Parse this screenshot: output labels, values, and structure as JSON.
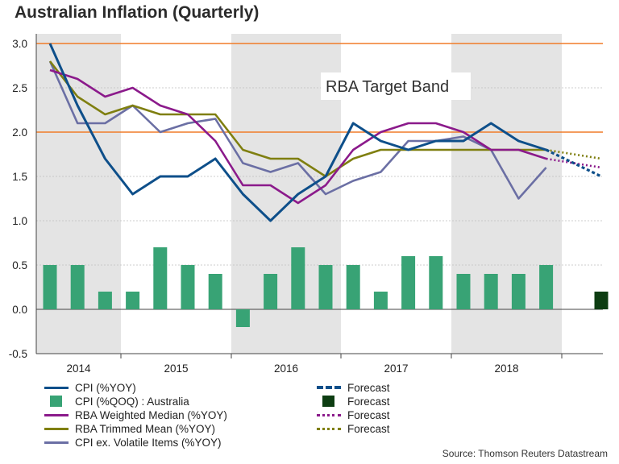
{
  "title": "Australian Inflation (Quarterly)",
  "source": "Source: Thomson Reuters Datastream",
  "colors": {
    "cpi": "#0e4f8a",
    "cpi_qoq": "#38a375",
    "weighted_median": "#8b1a8b",
    "trimmed_mean": "#7f7f10",
    "cpi_ex_volatile": "#6b6fa4",
    "forecast_bar": "#0d3d12",
    "target_band": "#f07c28",
    "shade": "#e4e4e4"
  },
  "chart_data": {
    "type": "line",
    "title": "Australian Inflation (Quarterly)",
    "ylim": [
      -0.5,
      3.0
    ],
    "yticks": [
      "3.0",
      "2.5",
      "2.0",
      "1.5",
      "1.0",
      "0.5",
      "0.0",
      "-0.5"
    ],
    "ytick_values": [
      3.0,
      2.5,
      2.0,
      1.5,
      1.0,
      0.5,
      0.0,
      -0.5
    ],
    "x": [
      "2014-Q1",
      "2014-Q2",
      "2014-Q3",
      "2014-Q4",
      "2015-Q1",
      "2015-Q2",
      "2015-Q3",
      "2015-Q4",
      "2016-Q1",
      "2016-Q2",
      "2016-Q3",
      "2016-Q4",
      "2017-Q1",
      "2017-Q2",
      "2017-Q3",
      "2017-Q4",
      "2018-Q1",
      "2018-Q2",
      "2018-Q3",
      "2018-Q4"
    ],
    "year_labels": [
      "2014",
      "2015",
      "2016",
      "2017",
      "2018"
    ],
    "shaded_years": [
      "2014",
      "2016",
      "2018"
    ],
    "target_band": {
      "label": "RBA Target Band",
      "low": 2.0,
      "high": 3.0
    },
    "grid": true,
    "series": [
      {
        "name": "CPI (%YOY)",
        "kind": "line",
        "color_key": "cpi",
        "values": [
          3.0,
          2.3,
          1.7,
          1.3,
          1.5,
          1.5,
          1.7,
          1.3,
          1.0,
          1.3,
          1.5,
          2.1,
          1.9,
          1.8,
          1.9,
          1.9,
          2.1,
          1.9,
          1.8,
          null
        ],
        "forecast": [
          [
            "2018-Q3",
            1.8
          ],
          [
            "2018-Q4",
            1.5
          ]
        ]
      },
      {
        "name": "CPI (%QOQ) : Australia",
        "kind": "bar",
        "color_key": "cpi_qoq",
        "values": [
          0.5,
          0.5,
          0.2,
          0.2,
          0.7,
          0.5,
          0.4,
          -0.2,
          0.4,
          0.7,
          0.5,
          0.5,
          0.2,
          0.6,
          0.6,
          0.4,
          0.4,
          0.4,
          0.5,
          null
        ],
        "forecast": [
          [
            "2018-Q4",
            0.2
          ]
        ]
      },
      {
        "name": "RBA Weighted Median (%YOY)",
        "kind": "line",
        "color_key": "weighted_median",
        "values": [
          2.7,
          2.6,
          2.4,
          2.5,
          2.3,
          2.2,
          1.9,
          1.4,
          1.4,
          1.2,
          1.4,
          1.8,
          2.0,
          2.1,
          2.1,
          2.0,
          1.8,
          1.8,
          1.7,
          null
        ],
        "forecast": [
          [
            "2018-Q3",
            1.7
          ],
          [
            "2018-Q4",
            1.6
          ]
        ]
      },
      {
        "name": "RBA Trimmed Mean (%YOY)",
        "kind": "line",
        "color_key": "trimmed_mean",
        "values": [
          2.8,
          2.4,
          2.2,
          2.3,
          2.2,
          2.2,
          2.2,
          1.8,
          1.7,
          1.7,
          1.5,
          1.7,
          1.8,
          1.8,
          1.8,
          1.8,
          1.8,
          1.8,
          1.8,
          null
        ],
        "forecast": [
          [
            "2018-Q3",
            1.8
          ],
          [
            "2018-Q4",
            1.7
          ]
        ]
      },
      {
        "name": "CPI ex. Volatile Items (%YOY)",
        "kind": "line",
        "color_key": "cpi_ex_volatile",
        "values": [
          2.8,
          2.1,
          2.1,
          2.3,
          2.0,
          2.1,
          2.15,
          1.65,
          1.55,
          1.65,
          1.3,
          1.45,
          1.55,
          1.9,
          1.9,
          1.95,
          1.8,
          1.25,
          1.6,
          null
        ]
      }
    ],
    "legend": [
      {
        "label": "CPI (%YOY)",
        "swatch": "line",
        "color_key": "cpi"
      },
      {
        "label": "CPI (%QOQ) : Australia",
        "swatch": "box",
        "color_key": "cpi_qoq"
      },
      {
        "label": "RBA Weighted Median (%YOY)",
        "swatch": "line",
        "color_key": "weighted_median"
      },
      {
        "label": "RBA Trimmed Mean (%YOY)",
        "swatch": "line",
        "color_key": "trimmed_mean"
      },
      {
        "label": "CPI ex. Volatile Items (%YOY)",
        "swatch": "line",
        "color_key": "cpi_ex_volatile"
      },
      {
        "label": "Forecast",
        "swatch": "dotted-thick",
        "color_key": "cpi"
      },
      {
        "label": "Forecast",
        "swatch": "box",
        "color_key": "forecast_bar"
      },
      {
        "label": "Forecast",
        "swatch": "dotted",
        "color_key": "weighted_median"
      },
      {
        "label": "Forecast",
        "swatch": "dotted",
        "color_key": "trimmed_mean"
      }
    ]
  }
}
